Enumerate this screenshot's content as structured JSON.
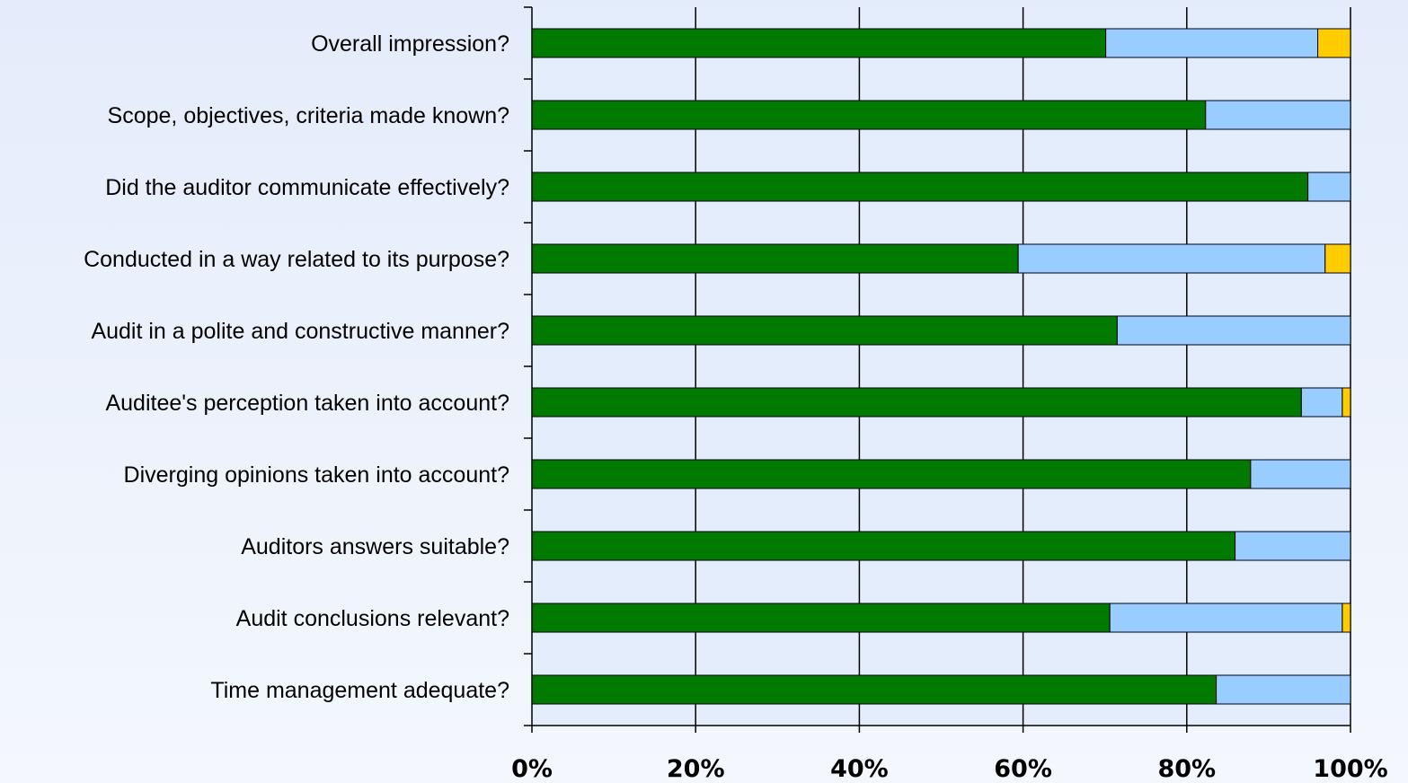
{
  "chart_data": {
    "type": "bar",
    "orientation": "horizontal",
    "stacked": true,
    "percent": true,
    "categories": [
      "Overall impression?",
      "Scope, objectives, criteria made known?",
      "Did the auditor communicate effectively?",
      "Conducted in a way related to its purpose?",
      "Audit in a polite and constructive manner?",
      "Auditee's perception taken into account?",
      "Diverging opinions taken into account?",
      "Auditors answers suitable?",
      "Audit conclusions relevant?",
      "Time management adequate?"
    ],
    "series": [
      {
        "color": "#007A00",
        "values": [
          70.1,
          82.3,
          94.8,
          59.4,
          71.5,
          94.0,
          87.8,
          85.9,
          70.6,
          83.6
        ]
      },
      {
        "color": "#99CCFF",
        "values": [
          25.9,
          17.7,
          5.2,
          37.5,
          28.5,
          5.0,
          12.2,
          14.1,
          28.4,
          16.4
        ]
      },
      {
        "color": "#FFCC00",
        "values": [
          4.0,
          0,
          0,
          3.1,
          0,
          1.0,
          0,
          0,
          1.0,
          0
        ]
      }
    ],
    "xlim": [
      0,
      100
    ],
    "xticks": [
      "0%",
      "20%",
      "40%",
      "60%",
      "80%",
      "100%"
    ],
    "grid": true,
    "legend": "none",
    "title": "",
    "xlabel": "",
    "ylabel": ""
  }
}
